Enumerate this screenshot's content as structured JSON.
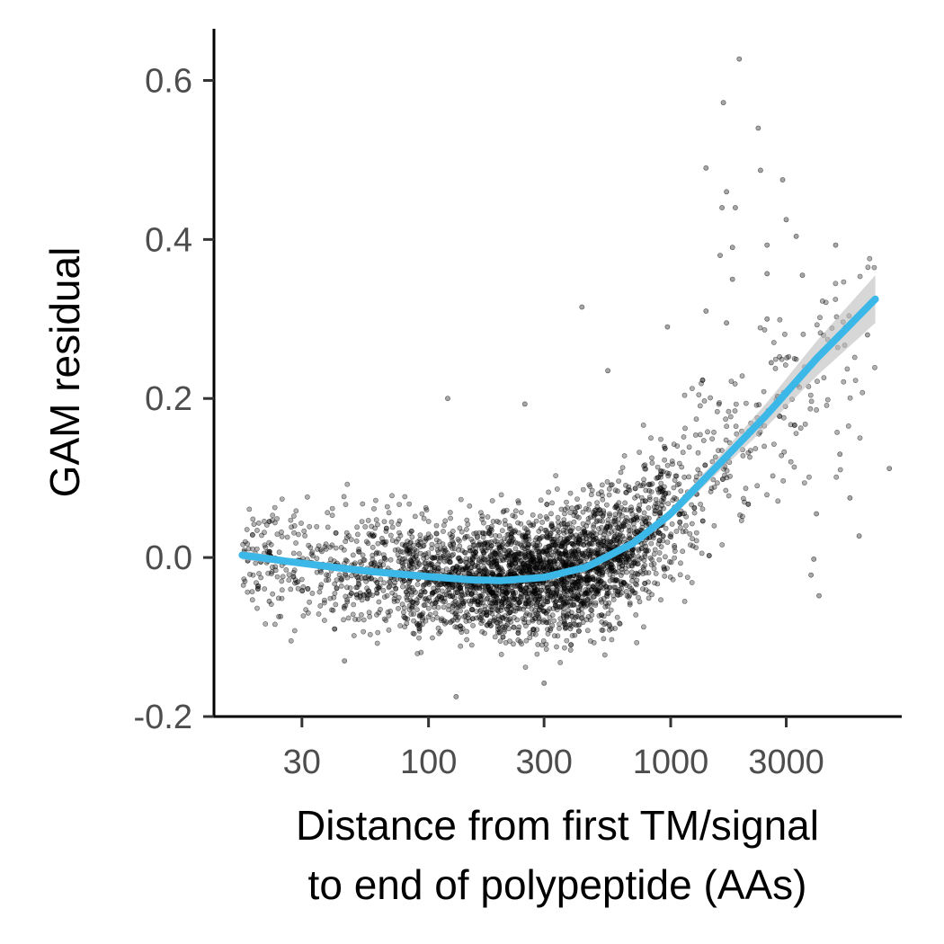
{
  "chart_data": {
    "type": "scatter",
    "x_scale": "log10",
    "xlabel_line1": "Distance from first TM/signal",
    "xlabel_line2": "to end of polypeptide (AAs)",
    "ylabel": "GAM residual",
    "xlim": [
      13,
      9000
    ],
    "ylim": [
      -0.2,
      0.665
    ],
    "x_ticks": [
      {
        "value": 30,
        "label": "30"
      },
      {
        "value": 100,
        "label": "100"
      },
      {
        "value": 300,
        "label": "300"
      },
      {
        "value": 1000,
        "label": "1000"
      },
      {
        "value": 3000,
        "label": "3000"
      }
    ],
    "y_ticks": [
      {
        "value": 0.6,
        "label": "0.6"
      },
      {
        "value": 0.4,
        "label": "0.4"
      },
      {
        "value": 0.2,
        "label": "0.2"
      },
      {
        "value": 0.0,
        "label": "0.0"
      },
      {
        "value": -0.2,
        "label": "-0.2"
      }
    ],
    "grid": false,
    "legend": "none",
    "colors": {
      "points": "#000000",
      "smooth": "#3bb8e8",
      "ribbon": "#bdbdbd"
    },
    "smooth_series": {
      "x": [
        17,
        25,
        40,
        60,
        100,
        150,
        200,
        300,
        450,
        700,
        1000,
        1500,
        2500,
        4000,
        7000
      ],
      "y": [
        0.003,
        -0.004,
        -0.012,
        -0.018,
        -0.024,
        -0.028,
        -0.029,
        -0.025,
        -0.012,
        0.018,
        0.055,
        0.11,
        0.18,
        0.25,
        0.325
      ],
      "ci_half_width": [
        0.006,
        0.004,
        0.003,
        0.002,
        0.002,
        0.002,
        0.002,
        0.002,
        0.003,
        0.004,
        0.006,
        0.009,
        0.015,
        0.022,
        0.03
      ]
    },
    "outlier_points": [
      {
        "x": 1920,
        "y": 0.627
      },
      {
        "x": 1650,
        "y": 0.572
      },
      {
        "x": 2300,
        "y": 0.54
      },
      {
        "x": 2350,
        "y": 0.487
      },
      {
        "x": 1400,
        "y": 0.49
      },
      {
        "x": 2900,
        "y": 0.475
      },
      {
        "x": 1700,
        "y": 0.46
      },
      {
        "x": 1630,
        "y": 0.44
      },
      {
        "x": 1850,
        "y": 0.44
      },
      {
        "x": 3000,
        "y": 0.425
      },
      {
        "x": 3300,
        "y": 0.404
      },
      {
        "x": 1800,
        "y": 0.39
      },
      {
        "x": 2500,
        "y": 0.393
      },
      {
        "x": 4800,
        "y": 0.393
      },
      {
        "x": 1600,
        "y": 0.38
      },
      {
        "x": 1800,
        "y": 0.35
      },
      {
        "x": 2500,
        "y": 0.357
      },
      {
        "x": 3500,
        "y": 0.355
      },
      {
        "x": 1400,
        "y": 0.31
      },
      {
        "x": 2500,
        "y": 0.3
      },
      {
        "x": 1700,
        "y": 0.295
      },
      {
        "x": 430,
        "y": 0.315
      },
      {
        "x": 6500,
        "y": 0.28
      },
      {
        "x": 970,
        "y": 0.29
      },
      {
        "x": 2600,
        "y": 0.245
      },
      {
        "x": 550,
        "y": 0.235
      },
      {
        "x": 120,
        "y": 0.2
      },
      {
        "x": 250,
        "y": 0.193
      },
      {
        "x": 5000,
        "y": 0.13
      },
      {
        "x": 5500,
        "y": 0.075
      },
      {
        "x": 6000,
        "y": 0.027
      },
      {
        "x": 8000,
        "y": 0.112
      },
      {
        "x": 4000,
        "y": 0.055
      },
      {
        "x": 3900,
        "y": -0.002
      },
      {
        "x": 4100,
        "y": -0.048
      },
      {
        "x": 3800,
        "y": -0.022
      },
      {
        "x": 22,
        "y": -0.055
      },
      {
        "x": 130,
        "y": -0.175
      },
      {
        "x": 45,
        "y": -0.13
      },
      {
        "x": 300,
        "y": -0.158
      }
    ],
    "point_cloud": {
      "n": 3600,
      "x_min": 17,
      "x_max": 7000,
      "dense_x_range": [
        150,
        900
      ],
      "note_y": "residuals scatter around the smooth curve, spread widening above ~1000"
    }
  }
}
